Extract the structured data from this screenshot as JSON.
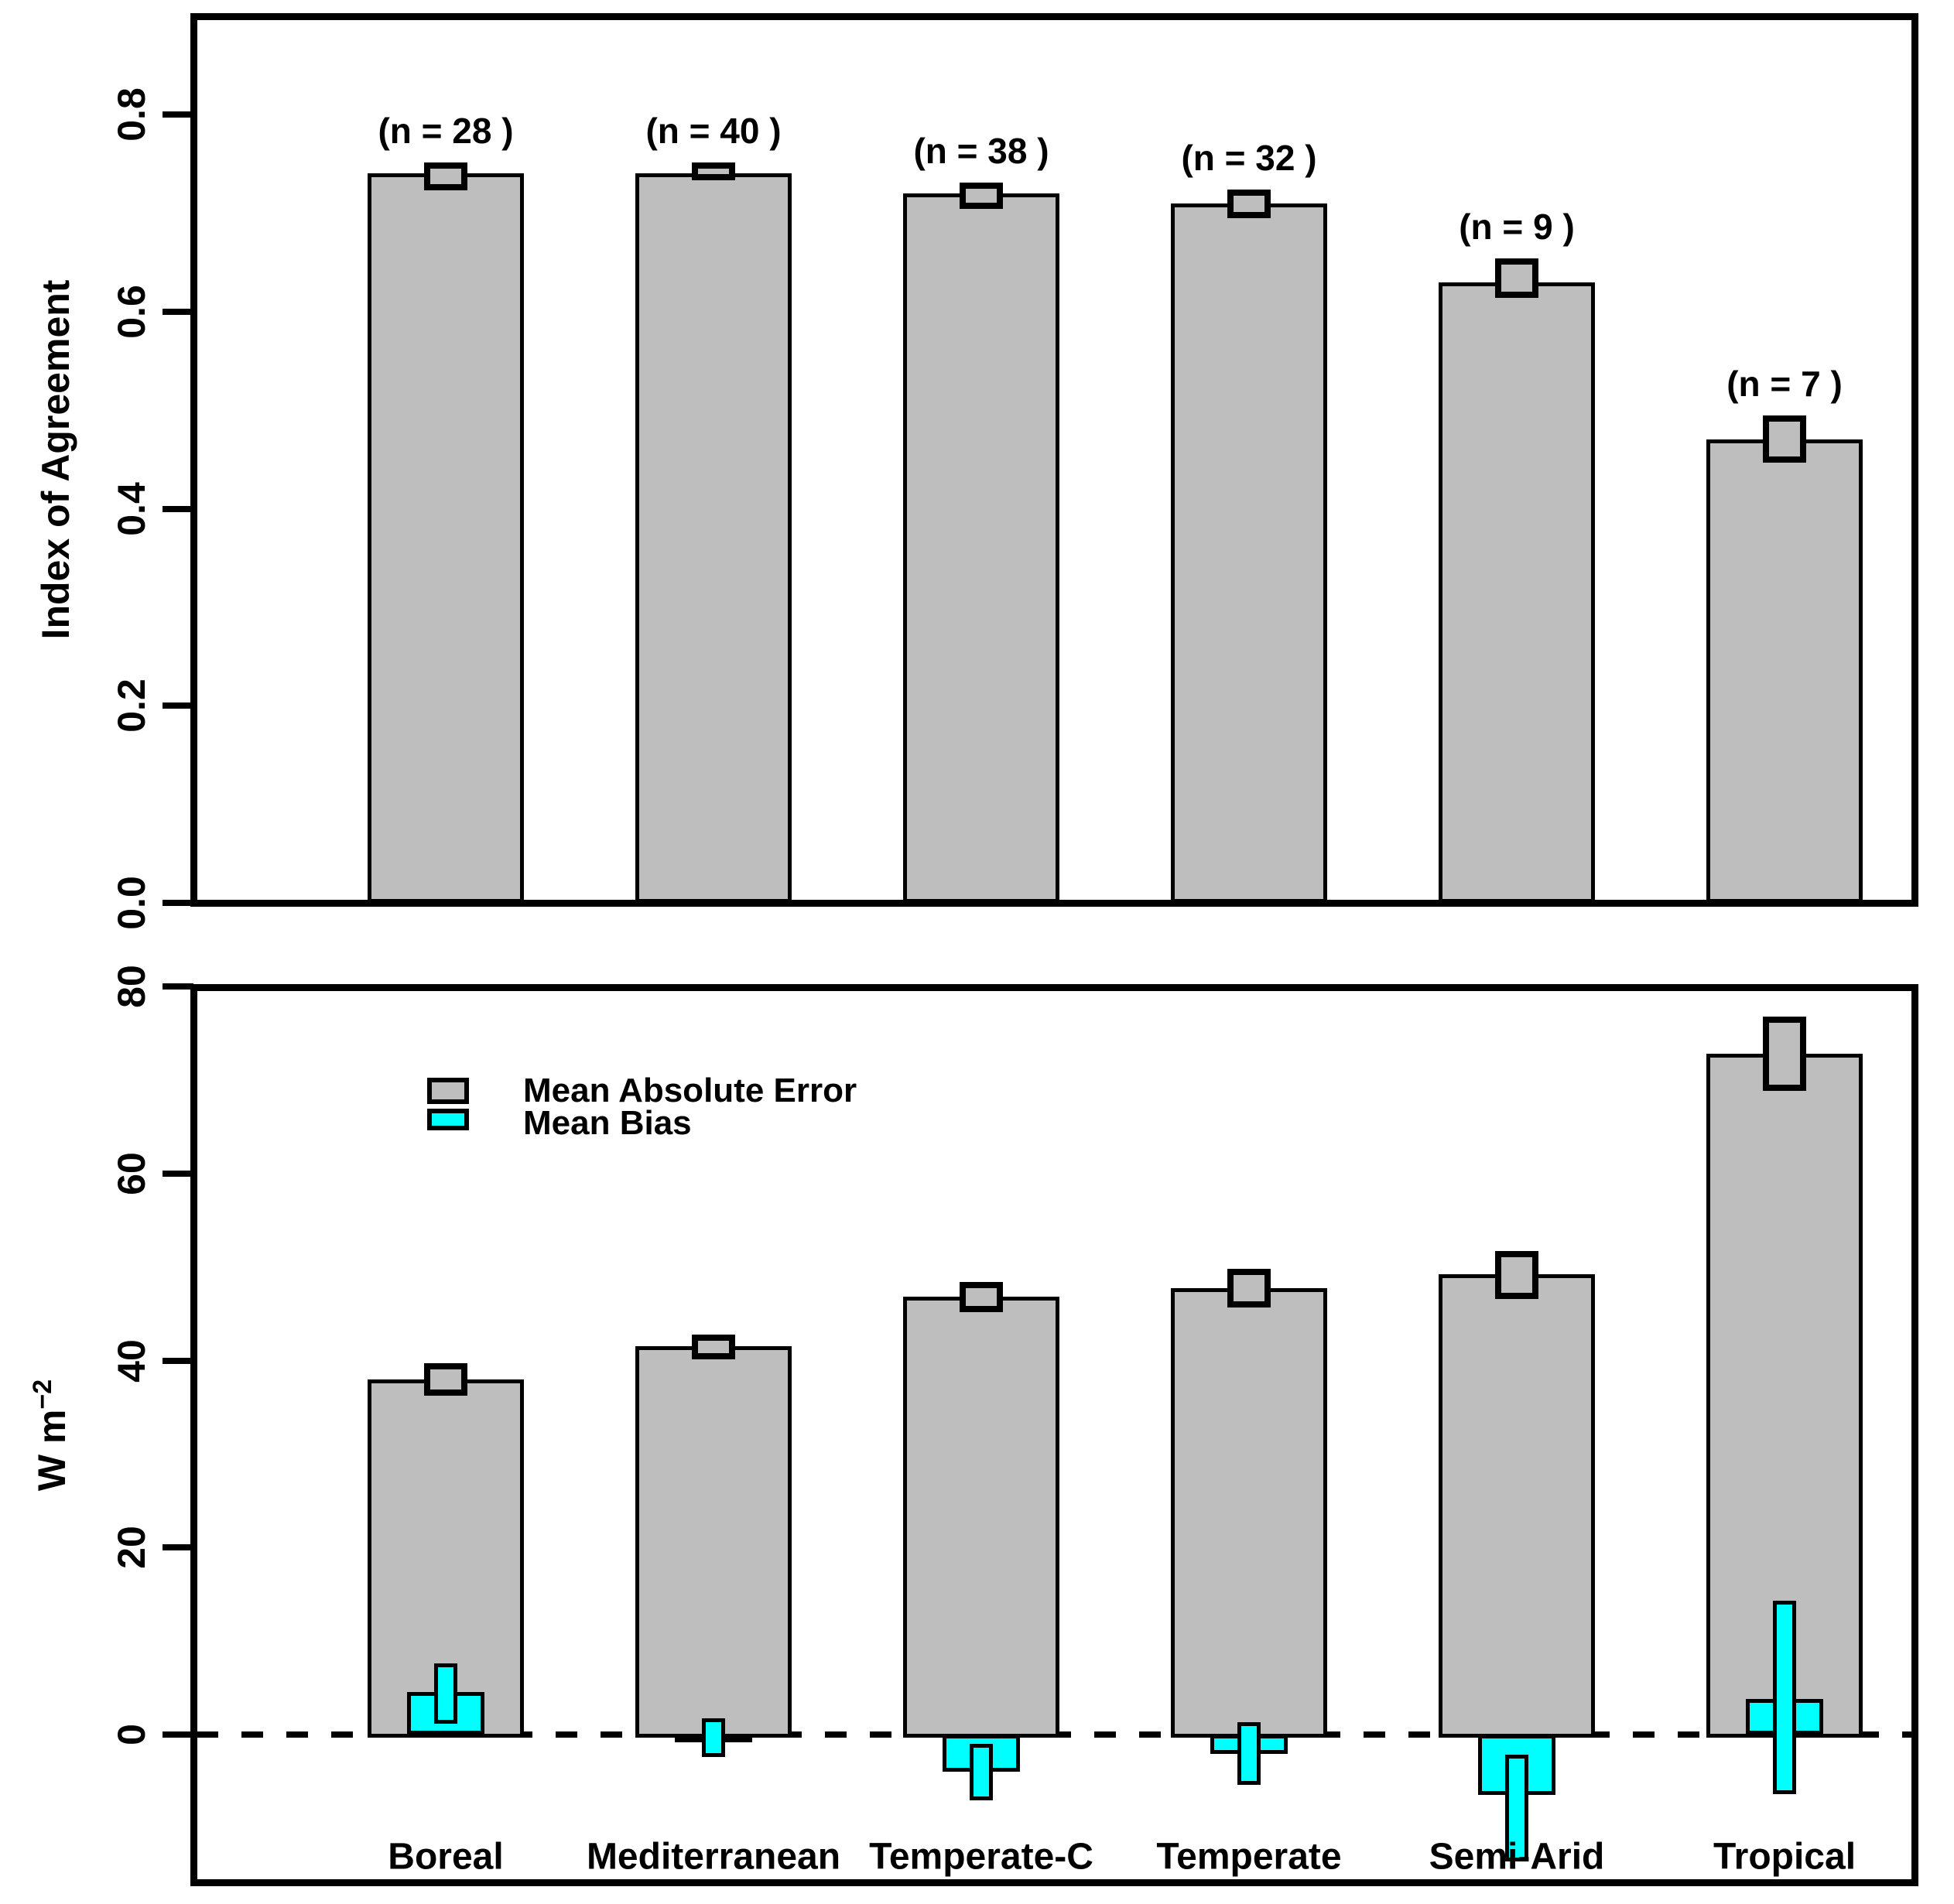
{
  "colors": {
    "bar_gray": "#BEBEBE",
    "bias_cyan": "#00FFFF",
    "axis_black": "#000000",
    "background": "#FFFFFF"
  },
  "chart_data": [
    {
      "type": "bar",
      "panel": "top",
      "title": "",
      "xlabel": "",
      "ylabel": "Index of Agreement",
      "ylim": [
        0,
        0.9
      ],
      "yticks": [
        0.0,
        0.2,
        0.4,
        0.6,
        0.8
      ],
      "ytick_labels": [
        "0.0",
        "0.2",
        "0.4",
        "0.6",
        "0.8"
      ],
      "grid": false,
      "categories": [
        "Boreal",
        "Mediterranean",
        "Temperate-C",
        "Temperate",
        "Semi-Arid",
        "Tropical"
      ],
      "series": [
        {
          "name": "Index of Agreement",
          "color": "#BEBEBE",
          "values": [
            0.74,
            0.74,
            0.72,
            0.71,
            0.63,
            0.47
          ],
          "err_hi": [
            0.751,
            0.751,
            0.731,
            0.724,
            0.654,
            0.495
          ],
          "err_lo": [
            0.723,
            0.733,
            0.704,
            0.695,
            0.614,
            0.447
          ]
        }
      ],
      "annotations": [
        "(n = 28 )",
        "(n = 40 )",
        "(n = 38 )",
        "(n = 32 )",
        "(n = 9 )",
        "(n = 7 )"
      ]
    },
    {
      "type": "bar",
      "panel": "bottom",
      "title": "",
      "xlabel": "",
      "ylabel_main": "W m",
      "ylabel_sup": "−2",
      "ylim": [
        -15.8,
        80
      ],
      "yticks": [
        0,
        20,
        40,
        60,
        80
      ],
      "ytick_labels": [
        "0",
        "20",
        "40",
        "60",
        "80"
      ],
      "grid": false,
      "zero_line": "dashed",
      "legend_position": "upper-left-inside",
      "categories": [
        "Boreal",
        "Mediterranean",
        "Temperate-C",
        "Temperate",
        "Semi-Arid",
        "Tropical"
      ],
      "series": [
        {
          "name": "Mean Absolute Error",
          "color": "#BEBEBE",
          "values": [
            38.0,
            41.5,
            46.8,
            47.7,
            49.2,
            72.8
          ],
          "err_hi": [
            39.7,
            42.8,
            48.4,
            49.8,
            51.7,
            76.8
          ],
          "err_lo": [
            36.2,
            40.1,
            45.2,
            45.7,
            46.6,
            68.8
          ]
        },
        {
          "name": "Mean Bias",
          "color": "#00FFFF",
          "values": [
            4.5,
            -0.5,
            -4.0,
            -2.1,
            -6.5,
            3.8
          ],
          "err_hi": [
            7.6,
            1.7,
            -1.0,
            1.3,
            -2.2,
            14.3
          ],
          "err_lo": [
            1.1,
            -2.4,
            -7.1,
            -5.4,
            -13.6,
            -6.4
          ]
        }
      ]
    }
  ]
}
